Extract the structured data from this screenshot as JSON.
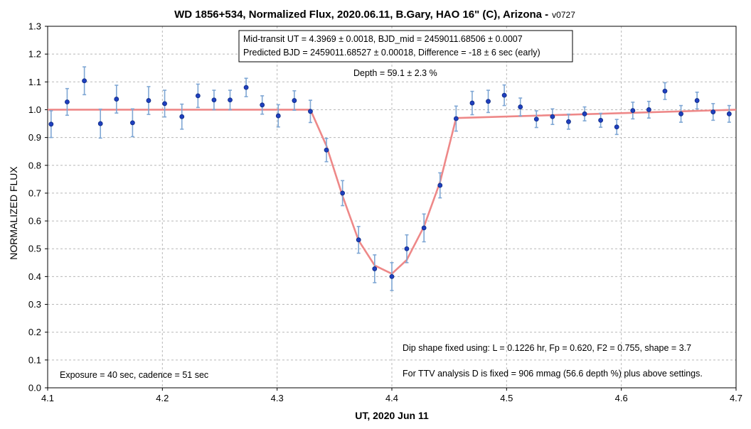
{
  "chart_data": {
    "type": "scatter",
    "title": "WD 1856+534, Normalized Flux, 2020.06.11, B.Gary, HAO 16\" (C), Arizona -",
    "title_suffix": "v0727",
    "xlabel": "UT, 2020 Jun 11",
    "ylabel": "NORMALIZED FLUX",
    "xlim": [
      4.1,
      4.7
    ],
    "ylim": [
      0.0,
      1.3
    ],
    "xticks": [
      "4.1",
      "4.2",
      "4.3",
      "4.4",
      "4.5",
      "4.6",
      "4.7"
    ],
    "yticks": [
      "0.0",
      "0.1",
      "0.2",
      "0.3",
      "0.4",
      "0.5",
      "0.6",
      "0.7",
      "0.8",
      "0.9",
      "1.0",
      "1.1",
      "1.2",
      "1.3"
    ],
    "grid": true,
    "series": [
      {
        "color": "#1f3fbf",
        "error_color": "#7fa7d4",
        "x": [
          4.103,
          4.117,
          4.132,
          4.146,
          4.16,
          4.174,
          4.188,
          4.202,
          4.217,
          4.231,
          4.245,
          4.259,
          4.273,
          4.287,
          4.301,
          4.315,
          4.329,
          4.343,
          4.357,
          4.371,
          4.385,
          4.4,
          4.413,
          4.428,
          4.442,
          4.456,
          4.47,
          4.484,
          4.498,
          4.512,
          4.526,
          4.54,
          4.554,
          4.568,
          4.582,
          4.596,
          4.61,
          4.624,
          4.638,
          4.652,
          4.666,
          4.68,
          4.694
        ],
        "y": [
          0.948,
          1.028,
          1.104,
          0.95,
          1.038,
          0.953,
          1.033,
          1.022,
          0.975,
          1.05,
          1.035,
          1.035,
          1.08,
          1.017,
          0.978,
          1.033,
          0.994,
          0.855,
          0.7,
          0.532,
          0.428,
          0.4,
          0.5,
          0.575,
          0.728,
          0.968,
          1.024,
          1.03,
          1.052,
          1.01,
          0.966,
          0.975,
          0.957,
          0.985,
          0.962,
          0.938,
          0.997,
          1.0,
          1.067,
          0.985,
          1.033,
          0.992,
          0.985
        ],
        "err": [
          0.048,
          0.048,
          0.05,
          0.052,
          0.05,
          0.05,
          0.05,
          0.048,
          0.045,
          0.042,
          0.035,
          0.035,
          0.033,
          0.033,
          0.04,
          0.035,
          0.04,
          0.042,
          0.045,
          0.048,
          0.05,
          0.05,
          0.05,
          0.05,
          0.045,
          0.045,
          0.042,
          0.04,
          0.037,
          0.032,
          0.03,
          0.028,
          0.027,
          0.025,
          0.025,
          0.027,
          0.03,
          0.03,
          0.03,
          0.03,
          0.03,
          0.03,
          0.03
        ]
      },
      {
        "type": "line",
        "color": "#ee8888",
        "x": [
          4.1,
          4.329,
          4.343,
          4.357,
          4.371,
          4.385,
          4.4,
          4.413,
          4.428,
          4.442,
          4.456,
          4.7
        ],
        "y": [
          1.0,
          1.0,
          0.87,
          0.69,
          0.53,
          0.44,
          0.41,
          0.46,
          0.58,
          0.74,
          0.97,
          1.0
        ]
      }
    ],
    "annotations": {
      "box_line1": "Mid-transit UT = 4.3969 ± 0.0018, BJD_mid = 2459011.68506 ± 0.0007",
      "box_line2": "Predicted BJD = 2459011.68527 ± 0.00018, Difference = -18 ± 6 sec (early)",
      "depth": "Depth = 59.1 ± 2.3 %",
      "dip_shape": "Dip shape fixed using:  L = 0.1226 hr, Fp = 0.620, F2 = 0.755, shape = 3.7",
      "exposure": "Exposure = 40 sec, cadence = 51 sec",
      "ttv": "For TTV analysis D is fixed = 906 mmag (56.6 depth %) plus above settings."
    }
  }
}
